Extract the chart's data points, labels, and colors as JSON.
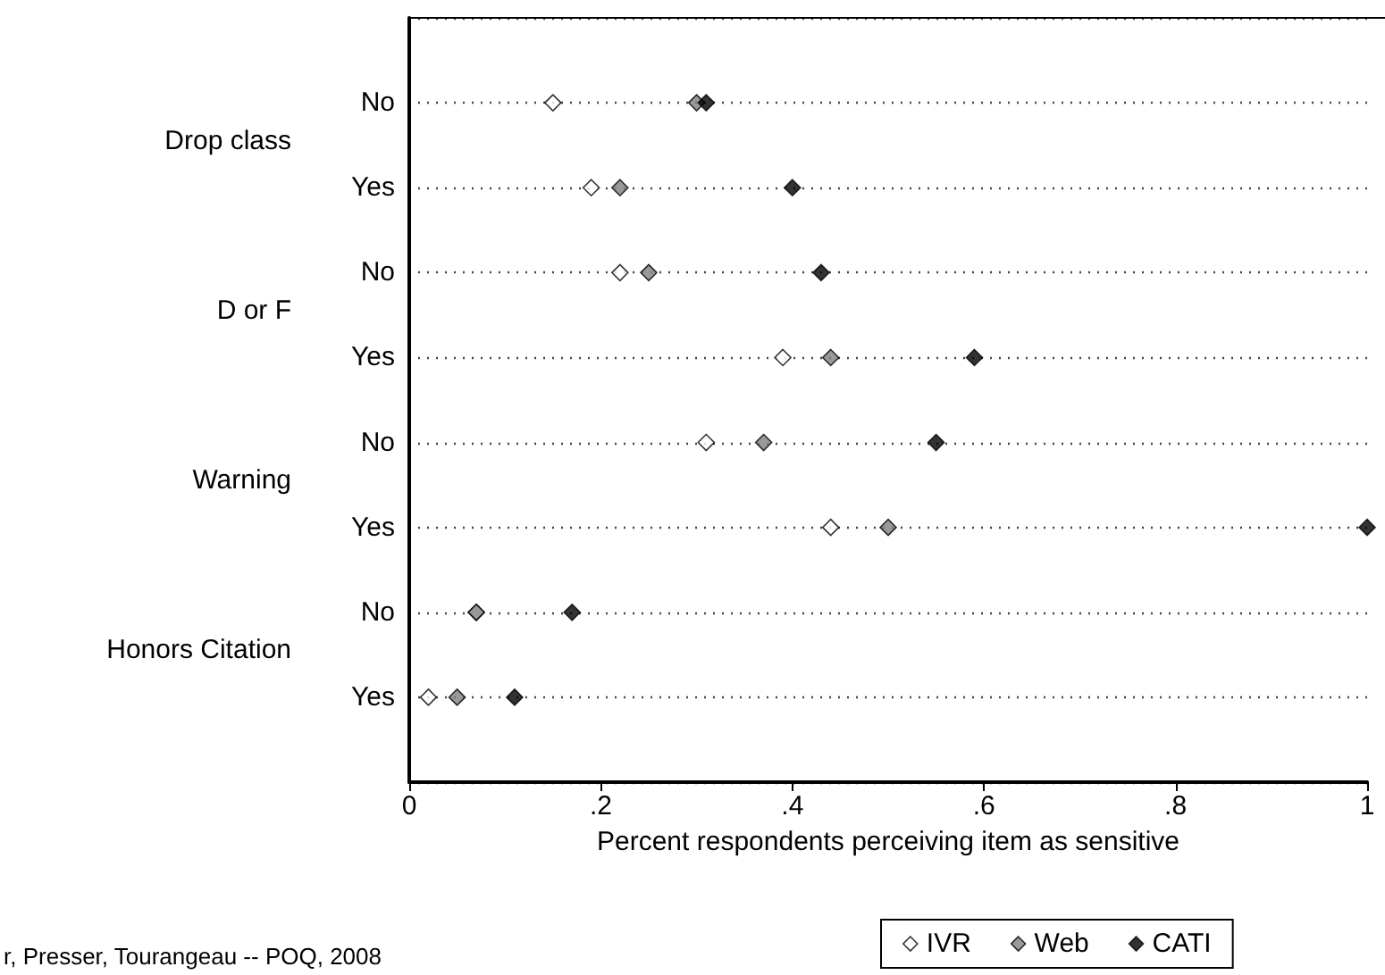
{
  "chart_data": {
    "type": "scatter",
    "orientation": "horizontal",
    "categories": [
      "No",
      "Yes",
      "No",
      "Yes",
      "No",
      "Yes",
      "No",
      "Yes"
    ],
    "xlabel": "Percent respondents perceiving item as sensitive",
    "xlim": [
      0,
      1
    ],
    "xticks": [
      0,
      {
        "value": 0.2,
        "label": ".2"
      },
      {
        "value": 0.4,
        "label": ".4"
      },
      {
        "value": 0.6,
        "label": ".6"
      },
      {
        "value": 0.8,
        "label": ".8"
      },
      1
    ],
    "series": [
      {
        "name": "IVR",
        "color": "#ffffff",
        "values": [
          0.15,
          0.19,
          0.22,
          0.39,
          0.31,
          0.44,
          0.07,
          0.02
        ]
      },
      {
        "name": "Web",
        "color": "#808080",
        "values": [
          0.3,
          0.22,
          0.25,
          0.44,
          0.37,
          0.5,
          0.07,
          0.05
        ]
      },
      {
        "name": "CATI",
        "color": "#000000",
        "values": [
          0.31,
          0.4,
          0.43,
          0.59,
          0.55,
          1.0,
          0.17,
          0.11
        ]
      }
    ],
    "marker": "diamond",
    "grid": "y",
    "legend": "bottom",
    "annotations": [
      "Drop class",
      "D or F",
      "Warning",
      "Honors Citation",
      "r, Presser, Tourangeau -- POQ, 2008"
    ]
  }
}
